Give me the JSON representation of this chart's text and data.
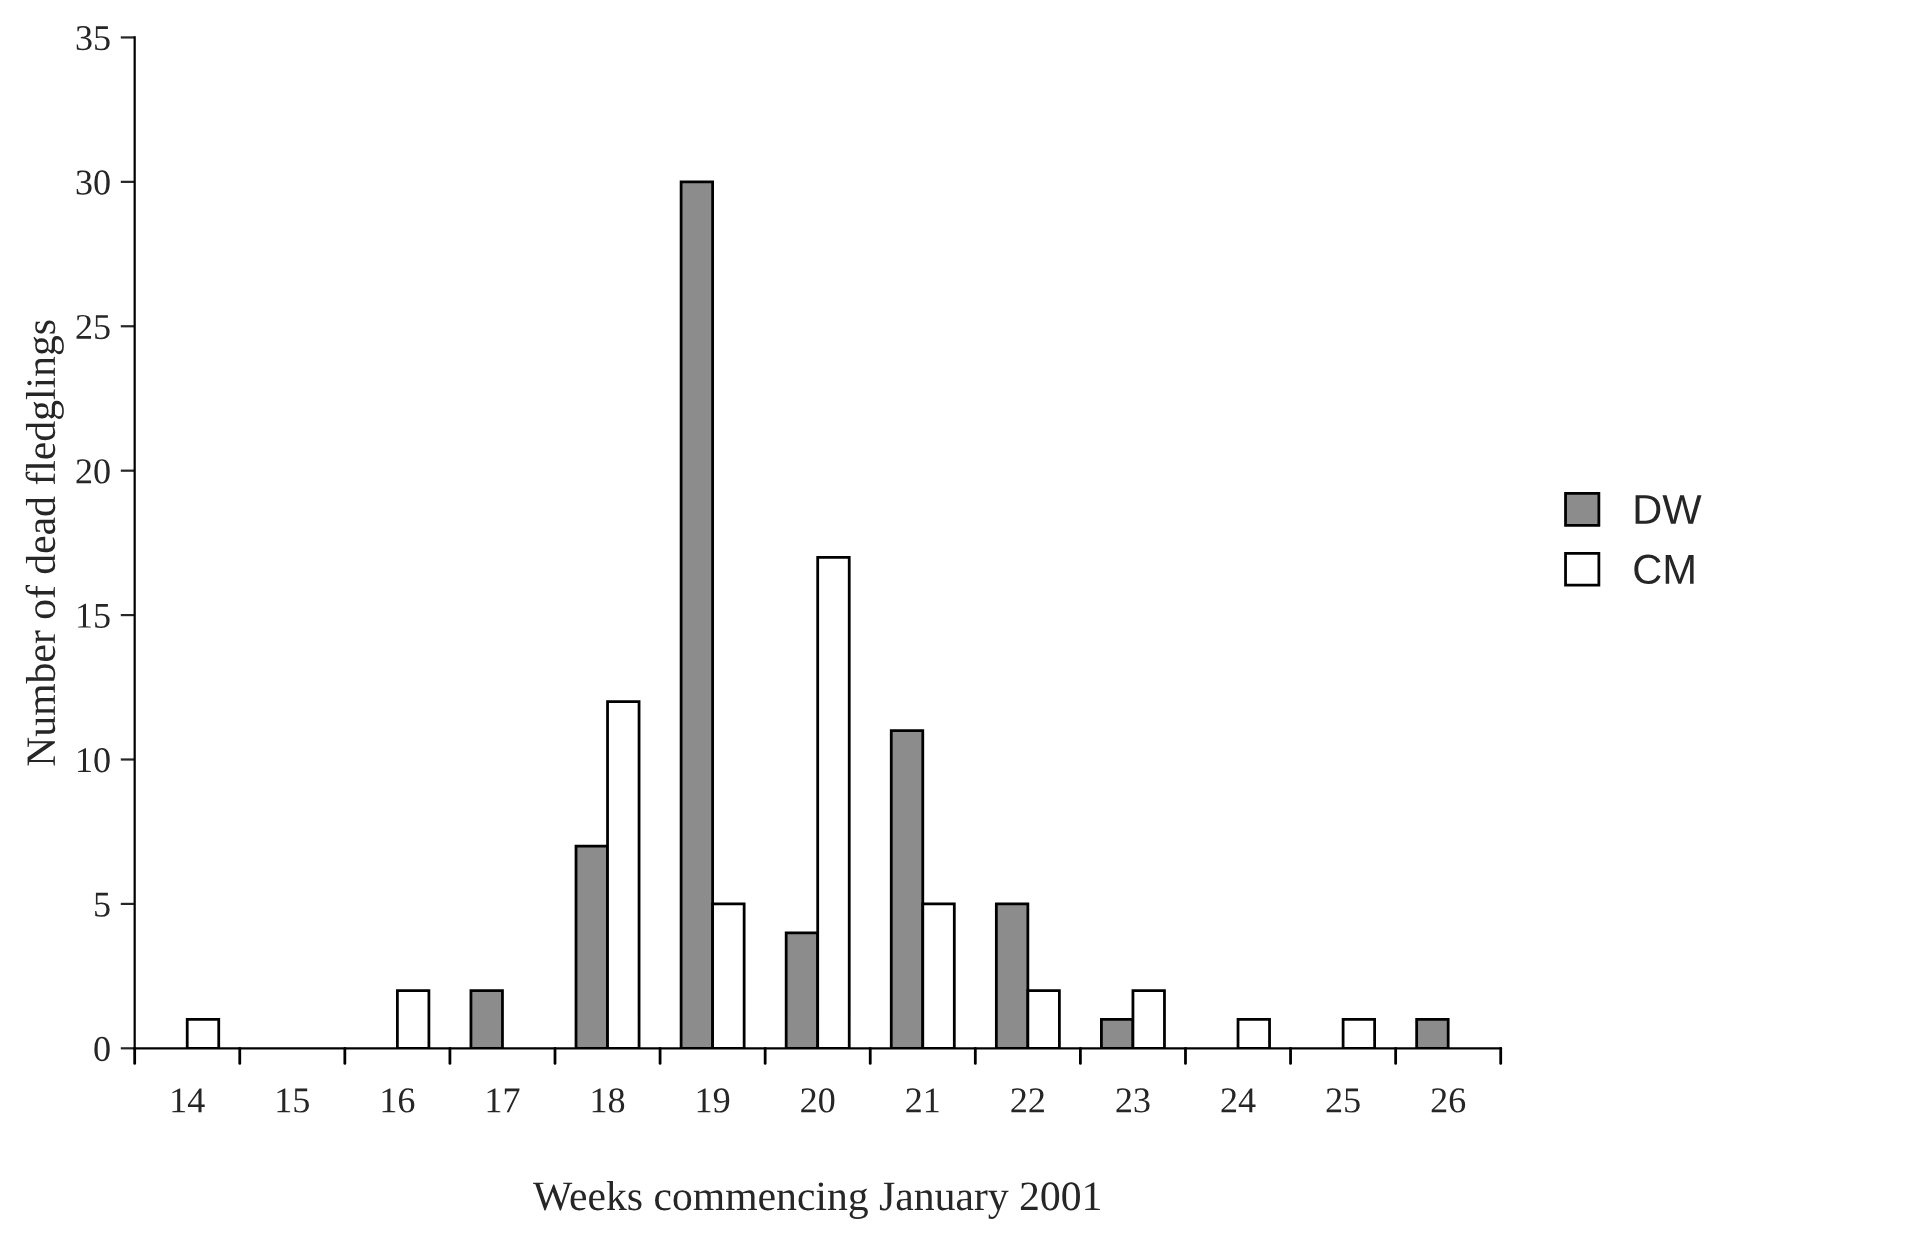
{
  "chart_data": {
    "type": "bar",
    "xlabel": "Weeks commencing January 2001",
    "ylabel": "Number of dead fledglings",
    "categories": [
      "14",
      "15",
      "16",
      "17",
      "18",
      "19",
      "20",
      "21",
      "22",
      "23",
      "24",
      "25",
      "26"
    ],
    "series": [
      {
        "name": "DW",
        "color": "#8c8c8c",
        "values": [
          0,
          0,
          0,
          2,
          7,
          30,
          4,
          11,
          5,
          1,
          0,
          0,
          1
        ]
      },
      {
        "name": "CM",
        "color": "#ffffff",
        "values": [
          1,
          0,
          2,
          0,
          12,
          5,
          17,
          5,
          2,
          2,
          1,
          1,
          0
        ]
      }
    ],
    "ylim": [
      0,
      35
    ],
    "yticks": [
      0,
      5,
      10,
      15,
      20,
      25,
      30,
      35
    ],
    "grid": false,
    "legend": "right"
  }
}
